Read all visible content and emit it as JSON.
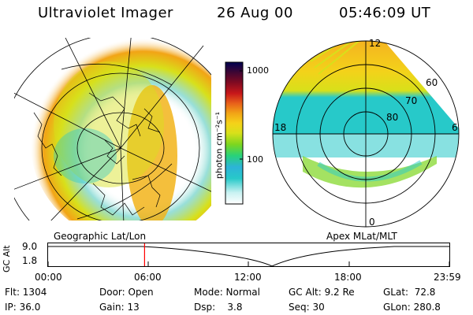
{
  "header": {
    "instrument": "Ultraviolet Imager",
    "date": "26 Aug 00",
    "time": "05:46:09 UT"
  },
  "left_panel": {
    "caption": "Geographic Lat/Lon"
  },
  "right_panel": {
    "caption": "Apex MLat/MLT",
    "lat_labels": [
      "60",
      "70",
      "80"
    ],
    "mlt_labels": {
      "top": "12",
      "left": "18",
      "right": "6",
      "bottom": "0"
    }
  },
  "colorbar": {
    "label": "photon cm⁻²s⁻¹",
    "tick_top": "1000",
    "tick_mid": "100",
    "colors": [
      "#ffffff",
      "#c9f2f2",
      "#27c9c9",
      "#2db3d8",
      "#27d27a",
      "#7dd61f",
      "#d8e01a",
      "#f5d219",
      "#f2a416",
      "#e8601a",
      "#c8171a",
      "#7d0a22",
      "#3d0634",
      "#000050"
    ]
  },
  "altitude_strip": {
    "axis_label": "GC Alt",
    "y_top": "9.0",
    "y_bottom": "1.8",
    "time_ticks": [
      "00:00",
      "06:00",
      "12:00",
      "18:00",
      "23:59"
    ],
    "marker_time": "05:46",
    "marker_color": "#ff0000"
  },
  "info": {
    "row1": {
      "flt": "Flt: 1304",
      "door": "Door: Open",
      "mode": "Mode: Normal",
      "gcalt": "GC Alt: 9.2 Re",
      "glat": "GLat:  72.8"
    },
    "row2": {
      "ip": "IP: 36.0",
      "gain": "Gain: 13",
      "dsp": "Dsp:    3.8",
      "seq": "Seq: 30",
      "glon": "GLon: 280.8"
    }
  }
}
